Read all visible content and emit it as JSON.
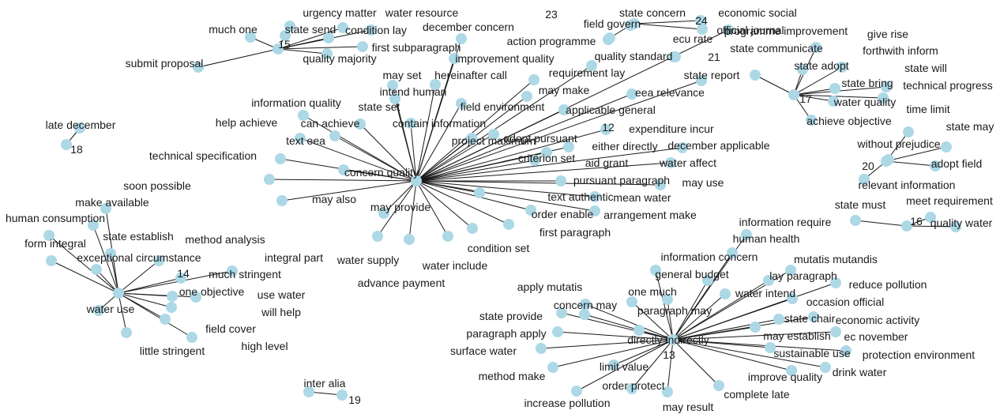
{
  "colors": {
    "node": "#add8e6",
    "edge": "#1a1a1a",
    "text": "#1a1a1a"
  },
  "clusters": [
    {
      "id": "15",
      "hub": "15",
      "hub_label": "15",
      "terms": [
        "urgency matter",
        "water resource",
        "much one",
        "state send",
        "condition lay",
        "december concern",
        "first subparagraph",
        "quality majority",
        "submit proposal"
      ]
    },
    {
      "id": "23",
      "hub": "23",
      "hub_label": "23",
      "terms": [
        "state concern",
        "field govern"
      ]
    },
    {
      "id": "24",
      "hub": "24",
      "hub_label": "24",
      "terms": [
        "economic social",
        "official journal"
      ]
    },
    {
      "id": "21",
      "hub": "21",
      "hub_label": "21",
      "terms": [
        "ecu rate"
      ]
    },
    {
      "id": "12",
      "hub": "12",
      "hub_label": "12",
      "terms": [
        "action programme",
        "improvement quality",
        "may set",
        "hereinafter call",
        "intend human",
        "requirement lay",
        "quality standard",
        "may make",
        "state report",
        "eea relevance",
        "applicable general",
        "field environment",
        "state set",
        "information quality",
        "contain information",
        "can achieve",
        "help achieve",
        "adopt pursuant",
        "project maximum",
        "expenditure incur",
        "text eea",
        "either directly",
        "december applicable",
        "criterion set",
        "technical specification",
        "aid grant",
        "water affect",
        "concern quality",
        "pursuant paragraph",
        "may use",
        "may also",
        "text authentic",
        "mean water",
        "may provide",
        "order enable",
        "arrangement make",
        "first paragraph",
        "condition set",
        "water supply",
        "water include",
        "advance payment",
        "programme improvement"
      ]
    },
    {
      "id": "17",
      "hub": "17",
      "hub_label": "17",
      "terms": [
        "give rise",
        "state communicate",
        "forthwith inform",
        "state adopt",
        "state will",
        "state bring",
        "technical progress",
        "water quality",
        "achieve objective"
      ]
    },
    {
      "id": "18",
      "hub": "18",
      "hub_label": "18",
      "terms": [
        "late december"
      ]
    },
    {
      "id": "20",
      "hub": "20",
      "hub_label": "20",
      "terms": [
        "time limit",
        "without prejudice",
        "adopt field",
        "relevant information",
        "state may"
      ]
    },
    {
      "id": "16",
      "hub": "16",
      "hub_label": "16",
      "terms": [
        "state must",
        "meet requirement",
        "quality water"
      ]
    },
    {
      "id": "14",
      "hub": "14",
      "hub_label": "14",
      "terms": [
        "soon possible",
        "make available",
        "human consumption",
        "form integral",
        "state establish",
        "method analysis",
        "exceptional circumstance",
        "integral part",
        "much stringent",
        "one objective",
        "use water",
        "water use",
        "will help",
        "field cover",
        "high level",
        "little stringent"
      ]
    },
    {
      "id": "13",
      "hub": "13",
      "hub_label": "13",
      "terms": [
        "information require",
        "human health",
        "information concern",
        "mutatis mutandis",
        "general budget",
        "lay paragraph",
        "apply mutatis",
        "one much",
        "reduce pollution",
        "water intend",
        "concern may",
        "paragraph may",
        "occasion official",
        "state provide",
        "state chair",
        "economic activity",
        "paragraph apply",
        "may establish",
        "ec november",
        "directly indirectly",
        "surface water",
        "sustainable use",
        "protection environment",
        "limit value",
        "method make",
        "drink water",
        "improve quality",
        "order protect",
        "increase pollution",
        "complete late",
        "may result"
      ]
    },
    {
      "id": "19",
      "hub": "19",
      "hub_label": "19",
      "terms": [
        "inter alia"
      ]
    }
  ]
}
